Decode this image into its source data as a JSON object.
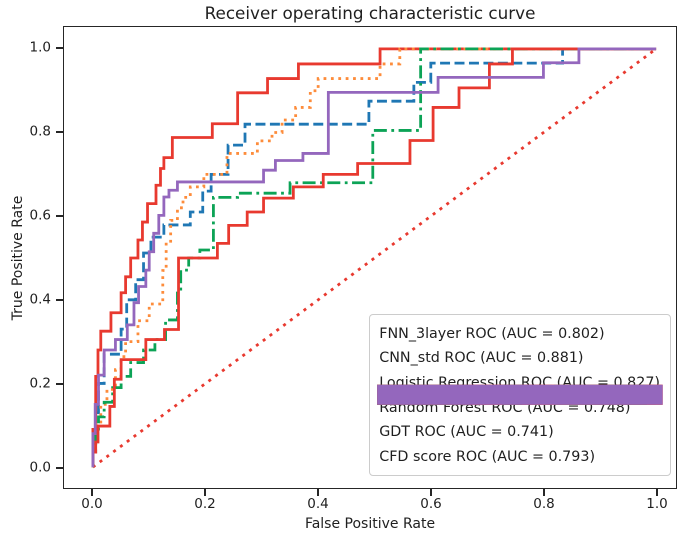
{
  "chart_data": {
    "type": "line",
    "title": "Receiver operating characteristic curve",
    "xlabel": "False Positive Rate",
    "ylabel": "True Positive Rate",
    "xlim": [
      -0.05,
      1.04
    ],
    "ylim": [
      -0.05,
      1.05
    ],
    "grid": false,
    "legend_position": "lower right",
    "x_ticks": [
      {
        "value": 0.0,
        "label": "0.0"
      },
      {
        "value": 0.2,
        "label": "0.2"
      },
      {
        "value": 0.4,
        "label": "0.4"
      },
      {
        "value": 0.6,
        "label": "0.6"
      },
      {
        "value": 0.8,
        "label": "0.8"
      },
      {
        "value": 1.0,
        "label": "1.0"
      }
    ],
    "y_ticks": [
      {
        "value": 0.0,
        "label": "0.0"
      },
      {
        "value": 0.2,
        "label": "0.2"
      },
      {
        "value": 0.4,
        "label": "0.4"
      },
      {
        "value": 0.6,
        "label": "0.6"
      },
      {
        "value": 0.8,
        "label": "0.8"
      },
      {
        "value": 1.0,
        "label": "1.0"
      }
    ],
    "series": [
      {
        "name": "chance-diagonal",
        "label": "",
        "in_legend": false,
        "color": "#e8392f",
        "linestyle": "dotted",
        "points": [
          [
            0,
            0
          ],
          [
            1,
            1
          ]
        ]
      },
      {
        "name": "FNN_3layer",
        "label": "FNN_3layer ROC (AUC = 0.802)",
        "auc": 0.802,
        "color": "#1f77b4",
        "linestyle": "dashed",
        "points": [
          [
            0,
            0
          ],
          [
            0,
            0.06
          ],
          [
            0.005,
            0.06
          ],
          [
            0.005,
            0.13
          ],
          [
            0.01,
            0.13
          ],
          [
            0.01,
            0.2
          ],
          [
            0.02,
            0.2
          ],
          [
            0.02,
            0.27
          ],
          [
            0.05,
            0.27
          ],
          [
            0.05,
            0.33
          ],
          [
            0.06,
            0.33
          ],
          [
            0.06,
            0.4
          ],
          [
            0.076,
            0.4
          ],
          [
            0.076,
            0.448
          ],
          [
            0.09,
            0.448
          ],
          [
            0.09,
            0.512
          ],
          [
            0.103,
            0.512
          ],
          [
            0.103,
            0.55
          ],
          [
            0.126,
            0.55
          ],
          [
            0.126,
            0.579
          ],
          [
            0.173,
            0.579
          ],
          [
            0.173,
            0.61
          ],
          [
            0.195,
            0.61
          ],
          [
            0.195,
            0.66
          ],
          [
            0.21,
            0.66
          ],
          [
            0.21,
            0.7
          ],
          [
            0.24,
            0.7
          ],
          [
            0.24,
            0.77
          ],
          [
            0.27,
            0.77
          ],
          [
            0.27,
            0.82
          ],
          [
            0.49,
            0.82
          ],
          [
            0.49,
            0.875
          ],
          [
            0.57,
            0.875
          ],
          [
            0.57,
            0.92
          ],
          [
            0.6,
            0.92
          ],
          [
            0.6,
            0.966
          ],
          [
            0.834,
            0.966
          ],
          [
            0.834,
            1
          ],
          [
            1,
            1
          ]
        ]
      },
      {
        "name": "CNN_std",
        "label": "CNN_std ROC (AUC = 0.881)",
        "auc": 0.881,
        "color": "#e8392f",
        "linestyle": "solid",
        "points": [
          [
            0,
            0
          ],
          [
            0,
            0.09
          ],
          [
            0.005,
            0.09
          ],
          [
            0.005,
            0.217
          ],
          [
            0.009,
            0.217
          ],
          [
            0.009,
            0.28
          ],
          [
            0.014,
            0.28
          ],
          [
            0.014,
            0.325
          ],
          [
            0.032,
            0.325
          ],
          [
            0.032,
            0.369
          ],
          [
            0.05,
            0.369
          ],
          [
            0.05,
            0.417
          ],
          [
            0.058,
            0.417
          ],
          [
            0.058,
            0.455
          ],
          [
            0.067,
            0.455
          ],
          [
            0.067,
            0.5
          ],
          [
            0.08,
            0.5
          ],
          [
            0.08,
            0.543
          ],
          [
            0.088,
            0.543
          ],
          [
            0.088,
            0.586
          ],
          [
            0.097,
            0.586
          ],
          [
            0.097,
            0.63
          ],
          [
            0.112,
            0.63
          ],
          [
            0.112,
            0.674
          ],
          [
            0.12,
            0.674
          ],
          [
            0.12,
            0.714
          ],
          [
            0.126,
            0.714
          ],
          [
            0.126,
            0.74
          ],
          [
            0.141,
            0.74
          ],
          [
            0.141,
            0.788
          ],
          [
            0.212,
            0.788
          ],
          [
            0.212,
            0.821
          ],
          [
            0.257,
            0.821
          ],
          [
            0.257,
            0.895
          ],
          [
            0.31,
            0.895
          ],
          [
            0.31,
            0.929
          ],
          [
            0.365,
            0.929
          ],
          [
            0.365,
            0.964
          ],
          [
            0.51,
            0.964
          ],
          [
            0.51,
            1
          ],
          [
            1,
            1
          ]
        ]
      },
      {
        "name": "Logistic Regression",
        "label": "Logistic Regression ROC (AUC = 0.827)",
        "auc": 0.827,
        "color": "#fd8c3b",
        "linestyle": "dotted",
        "points": [
          [
            0,
            0
          ],
          [
            0,
            0.05
          ],
          [
            0.007,
            0.05
          ],
          [
            0.007,
            0.102
          ],
          [
            0.014,
            0.102
          ],
          [
            0.014,
            0.15
          ],
          [
            0.025,
            0.15
          ],
          [
            0.025,
            0.186
          ],
          [
            0.04,
            0.186
          ],
          [
            0.04,
            0.233
          ],
          [
            0.05,
            0.233
          ],
          [
            0.05,
            0.264
          ],
          [
            0.058,
            0.264
          ],
          [
            0.058,
            0.3
          ],
          [
            0.08,
            0.3
          ],
          [
            0.08,
            0.35
          ],
          [
            0.1,
            0.35
          ],
          [
            0.1,
            0.39
          ],
          [
            0.124,
            0.39
          ],
          [
            0.124,
            0.47
          ],
          [
            0.13,
            0.47
          ],
          [
            0.13,
            0.54
          ],
          [
            0.138,
            0.54
          ],
          [
            0.138,
            0.59
          ],
          [
            0.15,
            0.59
          ],
          [
            0.15,
            0.62
          ],
          [
            0.16,
            0.62
          ],
          [
            0.16,
            0.645
          ],
          [
            0.173,
            0.645
          ],
          [
            0.173,
            0.67
          ],
          [
            0.197,
            0.67
          ],
          [
            0.197,
            0.7
          ],
          [
            0.238,
            0.7
          ],
          [
            0.238,
            0.75
          ],
          [
            0.292,
            0.75
          ],
          [
            0.292,
            0.78
          ],
          [
            0.318,
            0.78
          ],
          [
            0.318,
            0.8
          ],
          [
            0.336,
            0.8
          ],
          [
            0.336,
            0.83
          ],
          [
            0.36,
            0.83
          ],
          [
            0.36,
            0.86
          ],
          [
            0.386,
            0.86
          ],
          [
            0.386,
            0.9
          ],
          [
            0.4,
            0.9
          ],
          [
            0.4,
            0.929
          ],
          [
            0.51,
            0.929
          ],
          [
            0.51,
            0.964
          ],
          [
            0.545,
            0.964
          ],
          [
            0.545,
            1
          ],
          [
            1,
            1
          ]
        ]
      },
      {
        "name": "Random Forest",
        "label": "Random Forest ROC (AUC = 0.748)",
        "auc": 0.748,
        "color": "#0ca356",
        "linestyle": "dashdot",
        "points": [
          [
            0,
            0
          ],
          [
            0,
            0.036
          ],
          [
            0.005,
            0.036
          ],
          [
            0.005,
            0.08
          ],
          [
            0.01,
            0.08
          ],
          [
            0.01,
            0.12
          ],
          [
            0.02,
            0.12
          ],
          [
            0.02,
            0.155
          ],
          [
            0.035,
            0.155
          ],
          [
            0.035,
            0.19
          ],
          [
            0.05,
            0.19
          ],
          [
            0.05,
            0.217
          ],
          [
            0.067,
            0.217
          ],
          [
            0.067,
            0.25
          ],
          [
            0.09,
            0.25
          ],
          [
            0.09,
            0.28
          ],
          [
            0.11,
            0.28
          ],
          [
            0.11,
            0.305
          ],
          [
            0.129,
            0.305
          ],
          [
            0.129,
            0.352
          ],
          [
            0.15,
            0.352
          ],
          [
            0.15,
            0.42
          ],
          [
            0.156,
            0.42
          ],
          [
            0.156,
            0.471
          ],
          [
            0.17,
            0.471
          ],
          [
            0.17,
            0.5
          ],
          [
            0.19,
            0.5
          ],
          [
            0.19,
            0.519
          ],
          [
            0.214,
            0.519
          ],
          [
            0.214,
            0.645
          ],
          [
            0.257,
            0.645
          ],
          [
            0.257,
            0.655
          ],
          [
            0.35,
            0.655
          ],
          [
            0.35,
            0.68
          ],
          [
            0.497,
            0.68
          ],
          [
            0.497,
            0.805
          ],
          [
            0.582,
            0.805
          ],
          [
            0.582,
            1
          ],
          [
            1,
            1
          ]
        ]
      },
      {
        "name": "GDT",
        "label": "GDT ROC (AUC = 0.741)",
        "auc": 0.741,
        "color": "#e8392f",
        "linestyle": "solid",
        "points": [
          [
            0,
            0
          ],
          [
            0,
            0.036
          ],
          [
            0.005,
            0.036
          ],
          [
            0.005,
            0.06
          ],
          [
            0.009,
            0.06
          ],
          [
            0.009,
            0.098
          ],
          [
            0.03,
            0.098
          ],
          [
            0.03,
            0.145
          ],
          [
            0.038,
            0.145
          ],
          [
            0.038,
            0.21
          ],
          [
            0.05,
            0.21
          ],
          [
            0.05,
            0.257
          ],
          [
            0.094,
            0.257
          ],
          [
            0.094,
            0.305
          ],
          [
            0.127,
            0.305
          ],
          [
            0.127,
            0.329
          ],
          [
            0.152,
            0.329
          ],
          [
            0.152,
            0.5
          ],
          [
            0.221,
            0.5
          ],
          [
            0.221,
            0.535
          ],
          [
            0.241,
            0.535
          ],
          [
            0.241,
            0.578
          ],
          [
            0.274,
            0.578
          ],
          [
            0.274,
            0.61
          ],
          [
            0.303,
            0.61
          ],
          [
            0.303,
            0.643
          ],
          [
            0.356,
            0.643
          ],
          [
            0.356,
            0.67
          ],
          [
            0.409,
            0.67
          ],
          [
            0.409,
            0.7
          ],
          [
            0.47,
            0.7
          ],
          [
            0.47,
            0.726
          ],
          [
            0.563,
            0.726
          ],
          [
            0.563,
            0.781
          ],
          [
            0.604,
            0.781
          ],
          [
            0.604,
            0.86
          ],
          [
            0.65,
            0.86
          ],
          [
            0.65,
            0.907
          ],
          [
            0.704,
            0.907
          ],
          [
            0.704,
            0.964
          ],
          [
            0.745,
            0.964
          ],
          [
            0.745,
            1
          ],
          [
            1,
            1
          ]
        ]
      },
      {
        "name": "CFD score",
        "label": "CFD score ROC (AUC = 0.793)",
        "auc": 0.793,
        "color": "#9467bd",
        "linestyle": "solid",
        "points": [
          [
            0,
            0
          ],
          [
            0,
            0.08
          ],
          [
            0.004,
            0.08
          ],
          [
            0.004,
            0.15
          ],
          [
            0.01,
            0.15
          ],
          [
            0.01,
            0.22
          ],
          [
            0.02,
            0.22
          ],
          [
            0.02,
            0.28
          ],
          [
            0.04,
            0.28
          ],
          [
            0.04,
            0.305
          ],
          [
            0.061,
            0.305
          ],
          [
            0.061,
            0.34
          ],
          [
            0.073,
            0.34
          ],
          [
            0.073,
            0.393
          ],
          [
            0.081,
            0.393
          ],
          [
            0.081,
            0.432
          ],
          [
            0.094,
            0.432
          ],
          [
            0.094,
            0.471
          ],
          [
            0.1,
            0.471
          ],
          [
            0.1,
            0.515
          ],
          [
            0.108,
            0.515
          ],
          [
            0.108,
            0.559
          ],
          [
            0.117,
            0.559
          ],
          [
            0.117,
            0.602
          ],
          [
            0.126,
            0.602
          ],
          [
            0.126,
            0.646
          ],
          [
            0.135,
            0.646
          ],
          [
            0.135,
            0.662
          ],
          [
            0.15,
            0.662
          ],
          [
            0.15,
            0.682
          ],
          [
            0.303,
            0.682
          ],
          [
            0.303,
            0.71
          ],
          [
            0.324,
            0.71
          ],
          [
            0.324,
            0.733
          ],
          [
            0.373,
            0.733
          ],
          [
            0.373,
            0.75
          ],
          [
            0.418,
            0.75
          ],
          [
            0.418,
            0.896
          ],
          [
            0.613,
            0.896
          ],
          [
            0.613,
            0.932
          ],
          [
            0.8,
            0.932
          ],
          [
            0.8,
            0.967
          ],
          [
            0.863,
            0.967
          ],
          [
            0.863,
            1
          ],
          [
            1,
            1
          ]
        ]
      }
    ]
  }
}
